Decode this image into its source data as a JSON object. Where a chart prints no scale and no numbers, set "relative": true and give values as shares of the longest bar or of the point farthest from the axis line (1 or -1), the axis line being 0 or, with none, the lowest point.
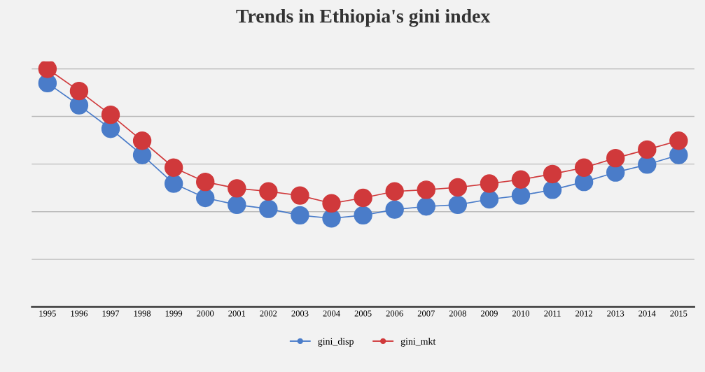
{
  "chart_data": {
    "type": "line",
    "title": "Trends in Ethiopia's gini index",
    "relative": true,
    "categories": [
      "1995",
      "1996",
      "1997",
      "1998",
      "1999",
      "2000",
      "2001",
      "2002",
      "2003",
      "2004",
      "2005",
      "2006",
      "2007",
      "2008",
      "2009",
      "2010",
      "2011",
      "2012",
      "2013",
      "2014",
      "2015"
    ],
    "series": [
      {
        "name": "gini_disp",
        "color": "#4a7cc9",
        "values": [
          0.94,
          0.847,
          0.748,
          0.638,
          0.518,
          0.458,
          0.429,
          0.412,
          0.385,
          0.372,
          0.385,
          0.409,
          0.422,
          0.429,
          0.452,
          0.468,
          0.492,
          0.525,
          0.565,
          0.598,
          0.638
        ]
      },
      {
        "name": "gini_mkt",
        "color": "#d0393b",
        "values": [
          1.0,
          0.907,
          0.807,
          0.698,
          0.585,
          0.525,
          0.498,
          0.485,
          0.468,
          0.435,
          0.458,
          0.485,
          0.492,
          0.502,
          0.518,
          0.535,
          0.558,
          0.585,
          0.625,
          0.661,
          0.698
        ]
      }
    ],
    "marker": "circle",
    "line_style": "solid",
    "grid": "y",
    "legend": "bottom"
  }
}
